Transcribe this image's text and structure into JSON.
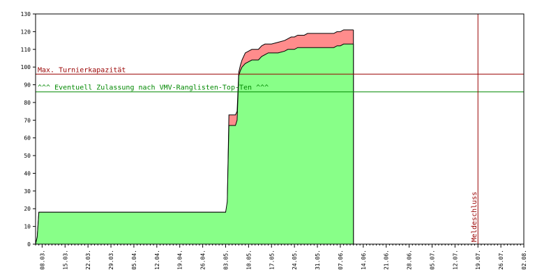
{
  "chart_data": {
    "type": "area",
    "ylim": [
      0,
      130
    ],
    "y_ticks": [
      0,
      10,
      20,
      30,
      40,
      50,
      60,
      70,
      80,
      90,
      100,
      110,
      120,
      130
    ],
    "x_tick_labels": [
      "08.03.",
      "15.03.",
      "22.03.",
      "29.03.",
      "05.04.",
      "12.04.",
      "19.04.",
      "26.04.",
      "03.05.",
      "10.05.",
      "17.05.",
      "24.05.",
      "31.05.",
      "07.06.",
      "14.06.",
      "21.06.",
      "28.06.",
      "05.07.",
      "12.07.",
      "19.07.",
      "26.07.",
      "02.08."
    ],
    "x_range_days": [
      -2,
      147
    ],
    "grid": false,
    "legend": "none",
    "colors": {
      "upper_area": "#ff8c8c",
      "lower_area": "#88ff88",
      "max_line": "#990000",
      "zulassung_line": "#008800",
      "deadline_line": "#990000",
      "axis": "#000000"
    },
    "series": [
      {
        "values": [
          [
            -2,
            0
          ],
          [
            -1.5,
            4
          ],
          [
            -1,
            18
          ],
          [
            56,
            18
          ],
          [
            56.5,
            22
          ],
          [
            57,
            73
          ],
          [
            59,
            73
          ],
          [
            59.5,
            75
          ],
          [
            60,
            97
          ],
          [
            60.5,
            101
          ],
          [
            61,
            104
          ],
          [
            61.5,
            106
          ],
          [
            62,
            108
          ],
          [
            63,
            109
          ],
          [
            64,
            110
          ],
          [
            66,
            110
          ],
          [
            67,
            112
          ],
          [
            68,
            113
          ],
          [
            70,
            113
          ],
          [
            72,
            114
          ],
          [
            74,
            115
          ],
          [
            75,
            116
          ],
          [
            76,
            117
          ],
          [
            77,
            117
          ],
          [
            78,
            118
          ],
          [
            80,
            118
          ],
          [
            81,
            119
          ],
          [
            82,
            119
          ],
          [
            84,
            119
          ],
          [
            86,
            119
          ],
          [
            87,
            119
          ],
          [
            88,
            119
          ],
          [
            89,
            119
          ],
          [
            90,
            120
          ],
          [
            91,
            120
          ],
          [
            92,
            121
          ],
          [
            95,
            121
          ]
        ]
      },
      {
        "values": [
          [
            -2,
            0
          ],
          [
            -1.5,
            4
          ],
          [
            -1,
            18
          ],
          [
            56,
            18
          ],
          [
            56.5,
            24
          ],
          [
            57,
            67
          ],
          [
            59,
            67
          ],
          [
            59.5,
            70
          ],
          [
            60,
            95
          ],
          [
            60.5,
            98
          ],
          [
            61,
            100
          ],
          [
            62,
            102
          ],
          [
            63,
            103
          ],
          [
            64,
            104
          ],
          [
            66,
            104
          ],
          [
            67,
            106
          ],
          [
            68,
            107
          ],
          [
            69,
            108
          ],
          [
            72,
            108
          ],
          [
            74,
            109
          ],
          [
            75,
            110
          ],
          [
            77,
            110
          ],
          [
            78,
            111
          ],
          [
            80,
            111
          ],
          [
            84,
            111
          ],
          [
            86,
            111
          ],
          [
            87,
            111
          ],
          [
            88,
            111
          ],
          [
            89,
            111
          ],
          [
            90,
            112
          ],
          [
            91,
            112
          ],
          [
            92,
            113
          ],
          [
            95,
            113
          ]
        ]
      }
    ],
    "reference_lines": [
      {
        "axis": "y",
        "value": 96,
        "label": "Max. Turnierkapazität",
        "color": "#990000"
      },
      {
        "axis": "y",
        "value": 86,
        "label": "^^^ Eventuell Zulassung nach VMV-Ranglisten-Top-Ten ^^^",
        "color": "#008800"
      },
      {
        "axis": "x",
        "value": 133,
        "label": "Meldeschluss",
        "color": "#990000"
      }
    ]
  }
}
